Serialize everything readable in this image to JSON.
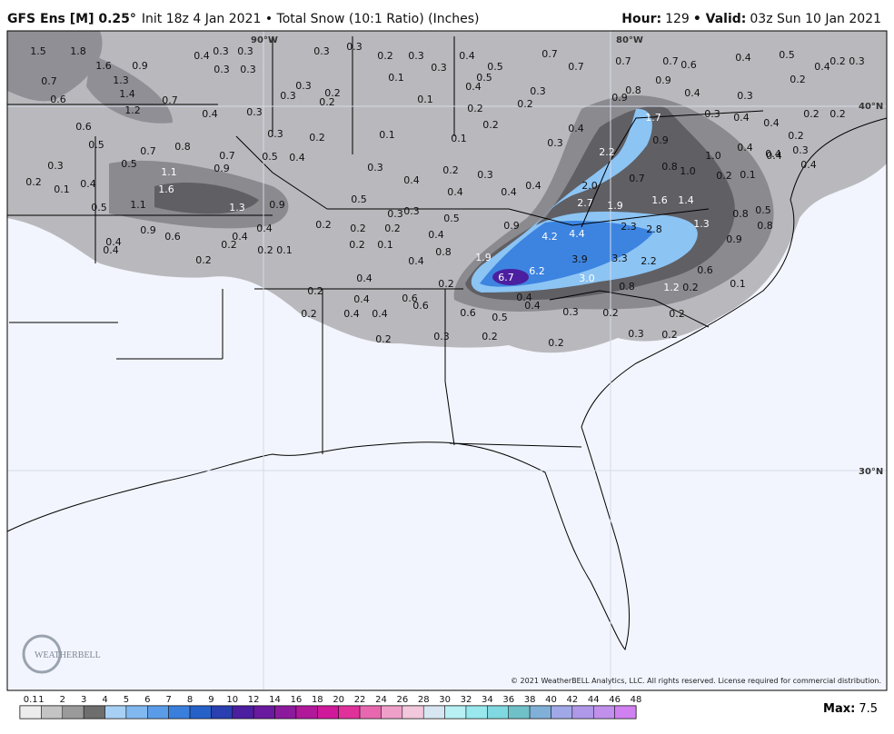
{
  "header": {
    "model": "GFS Ens [M] 0.25°",
    "description": "Init 18z 4 Jan 2021 • Total Snow (10:1 Ratio) (Inches)",
    "hour_label": "Hour:",
    "hour": 129,
    "valid_label": "• Valid:",
    "valid": "03z Sun 10 Jan 2021"
  },
  "map": {
    "lon_labels": [
      "90°W",
      "80°W"
    ],
    "lat_labels": [
      "40°N",
      "30°N"
    ],
    "logo": "WEATHERBELL",
    "copyright": "© 2021 WeatherBELL Analytics, LLC. All rights reserved. License required for commercial distribution.",
    "labels": [
      1.5,
      1.8,
      1.6,
      0.9,
      0.7,
      1.3,
      1.4,
      0.7,
      0.6,
      1.2,
      0.4,
      0.3,
      0.3,
      0.3,
      0.3,
      0.3,
      0.3,
      0.2,
      0.3,
      0.3,
      0.4,
      0.5,
      0.7,
      0.7,
      0.7,
      0.7,
      0.6,
      0.4,
      0.5,
      0.4,
      0.2,
      0.3,
      0.2,
      0.1,
      0.3,
      0.3,
      0.2,
      0.2,
      0.5,
      0.4,
      0.3,
      0.9,
      0.8,
      0.9,
      0.4,
      0.3,
      0.1,
      0.2,
      0.2,
      0.4,
      0.3,
      0.6,
      0.2,
      0.3,
      0.4,
      0.2,
      0.2,
      0.4,
      0.3,
      0.2,
      0.1,
      0.1,
      0.3,
      0.4,
      1.7,
      0.9,
      0.2,
      0.3,
      0.4,
      0.5,
      0.7,
      0.8,
      0.7,
      0.5,
      0.4,
      0.3,
      0.5,
      1.1,
      0.9,
      0.2,
      0.1,
      0.4,
      1.6,
      0.3,
      0.2,
      0.3,
      2.2,
      0.8,
      {
        "value": 1,
        "label": "1.0"
      },
      {
        "value": 1,
        "label": "1.0"
      },
      0.4,
      0.4,
      0.4,
      0.4,
      0.4,
      0.4,
      0.4,
      {
        "value": 2,
        "label": "2.0"
      },
      0.7,
      0.2,
      0.1,
      0.5,
      1.1,
      0.5,
      1.3,
      0.9,
      0.3,
      0.3,
      0.5,
      2.7,
      1.9,
      1.6,
      1.4,
      0.5,
      0.8,
      0.2,
      0.2,
      0.2,
      0.4,
      0.9,
      0.6,
      0.4,
      0.4,
      0.2,
      0.4,
      0.2,
      0.1,
      0.4,
      0.9,
      2.3,
      2.8,
      1.3,
      0.8,
      4.2,
      4.4,
      0.9,
      0.2,
      0.1,
      0.8,
      1.9,
      0.2,
      0.4,
      3.9,
      3.3,
      2.2,
      6.2,
      6.7,
      {
        "value": 3,
        "label": "3.0"
      },
      0.6,
      0.2,
      0.4,
      0.8,
      1.2,
      0.2,
      0.1,
      0.2,
      0.4,
      0.6,
      0.6,
      0.4,
      0.4,
      0.2,
      0.4,
      0.4,
      0.6,
      0.5,
      0.3,
      0.2,
      0.2,
      0.2,
      0.3,
      0.2,
      0.2,
      0.3,
      0.2
    ]
  },
  "colorbar": {
    "ticks": [
      0.1,
      1,
      2,
      3,
      4,
      5,
      6,
      7,
      8,
      9,
      10,
      12,
      14,
      16,
      18,
      20,
      22,
      24,
      26,
      28,
      30,
      32,
      34,
      36,
      38,
      40,
      42,
      44,
      46,
      48
    ],
    "colors": [
      "#ececec",
      "#c4c4c4",
      "#9a9a9a",
      "#6e6e6e",
      "#a8d0f5",
      "#82b8f0",
      "#5a9ce8",
      "#3a7fdc",
      "#2661c8",
      "#2a3fb0",
      "#4b1fa0",
      "#6a1a9e",
      "#8c1a9c",
      "#b0199a",
      "#d0189a",
      "#e0309a",
      "#e868b0",
      "#eea0c8",
      "#f2c8dc",
      "#d8e6f2",
      "#b8f0f4",
      "#98e8ee",
      "#80d8e0",
      "#70c0c8",
      "#80b0d8",
      "#a0a8e8",
      "#b098e8",
      "#c090ec",
      "#d080f0"
    ]
  },
  "max": {
    "label": "Max:",
    "value": 7.5
  }
}
